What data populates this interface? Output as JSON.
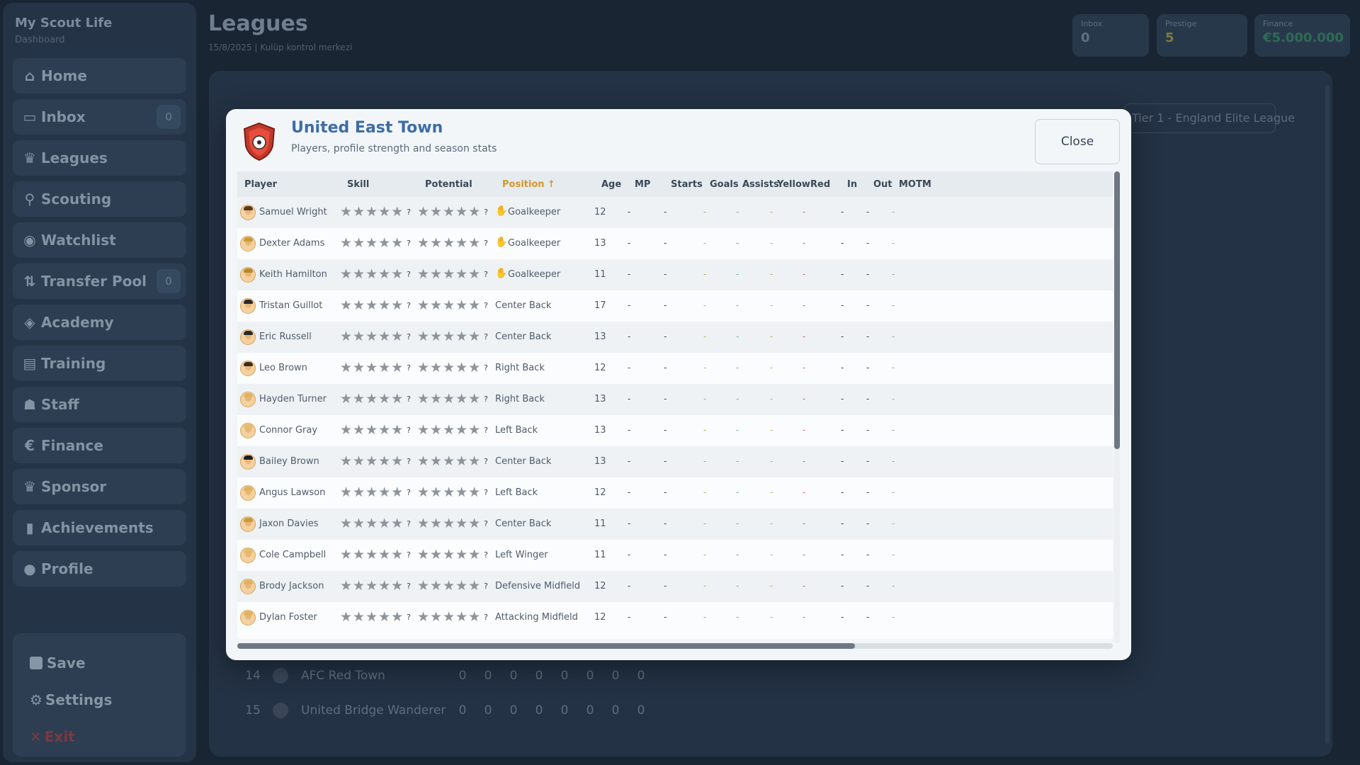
{
  "sidebar": {
    "brand": "My Scout Life",
    "brand_sub": "Dashboard",
    "items": [
      {
        "label": "Home",
        "icon": "home-icon",
        "count": ""
      },
      {
        "label": "Inbox",
        "icon": "inbox-icon",
        "count": "0"
      },
      {
        "label": "Leagues",
        "icon": "trophy-icon",
        "count": ""
      },
      {
        "label": "Scouting",
        "icon": "search-icon",
        "count": ""
      },
      {
        "label": "Watchlist",
        "icon": "eye-icon",
        "count": ""
      },
      {
        "label": "Transfer Pool",
        "icon": "transfer-icon",
        "count": "0"
      },
      {
        "label": "Academy",
        "icon": "academy-icon",
        "count": ""
      },
      {
        "label": "Training",
        "icon": "training-icon",
        "count": ""
      },
      {
        "label": "Staff",
        "icon": "staff-icon",
        "count": ""
      },
      {
        "label": "Finance",
        "icon": "finance-icon",
        "count": ""
      },
      {
        "label": "Sponsor",
        "icon": "sponsor-icon",
        "count": ""
      },
      {
        "label": "Achievements",
        "icon": "chart-icon",
        "count": ""
      },
      {
        "label": "Profile",
        "icon": "user-icon",
        "count": ""
      }
    ],
    "save": "Save",
    "settings": "Settings",
    "exit": "Exit"
  },
  "header": {
    "title": "Leagues",
    "subtitle": "15/8/2025  |  Kulüp kontrol merkezi",
    "stats": [
      {
        "label": "Inbox",
        "value": "0"
      },
      {
        "label": "Prestige",
        "value": "5"
      },
      {
        "label": "Finance",
        "value": "€5.000.000"
      }
    ]
  },
  "league_select": "Tier 1 - England Elite League",
  "standings": [
    {
      "pos": "14",
      "name": "AFC Red Town",
      "vals": [
        "0",
        "0",
        "0",
        "0",
        "0",
        "0",
        "0",
        "0"
      ]
    },
    {
      "pos": "15",
      "name": "United Bridge Wanderer",
      "vals": [
        "0",
        "0",
        "0",
        "0",
        "0",
        "0",
        "0",
        "0"
      ]
    }
  ],
  "modal": {
    "title": "United East Town",
    "subtitle": "Players, profile strength and season stats",
    "close": "Close",
    "columns": [
      "Player",
      "Skill",
      "Potential",
      "Position ↑",
      "Age",
      "MP",
      "Starts",
      "Goals",
      "Assists",
      "Yellow",
      "Red",
      "In",
      "Out",
      "MOTM"
    ],
    "unknown_mark": "?",
    "dash": "-",
    "players": [
      {
        "name": "Samuel Wright",
        "position": "Goalkeeper",
        "gk": true,
        "age": "12",
        "hair": "#5a3a1e"
      },
      {
        "name": "Dexter Adams",
        "position": "Goalkeeper",
        "gk": true,
        "age": "13",
        "hair": "#c79a3a"
      },
      {
        "name": "Keith Hamilton",
        "position": "Goalkeeper",
        "gk": true,
        "age": "11",
        "hair": "#b58a2e"
      },
      {
        "name": "Tristan Guillot",
        "position": "Center Back",
        "gk": false,
        "age": "17",
        "hair": "#2a2a2a"
      },
      {
        "name": "Eric Russell",
        "position": "Center Back",
        "gk": false,
        "age": "13",
        "hair": "#2a2a2a"
      },
      {
        "name": "Leo Brown",
        "position": "Right Back",
        "gk": false,
        "age": "12",
        "hair": "#3b2a1a"
      },
      {
        "name": "Hayden Turner",
        "position": "Right Back",
        "gk": false,
        "age": "13",
        "hair": "#e0b35a"
      },
      {
        "name": "Connor Gray",
        "position": "Left Back",
        "gk": false,
        "age": "13",
        "hair": "#e3bd6a"
      },
      {
        "name": "Bailey Brown",
        "position": "Center Back",
        "gk": false,
        "age": "13",
        "hair": "#1e1e1e"
      },
      {
        "name": "Angus Lawson",
        "position": "Left Back",
        "gk": false,
        "age": "12",
        "hair": "#e0b35a"
      },
      {
        "name": "Jaxon Davies",
        "position": "Center Back",
        "gk": false,
        "age": "11",
        "hair": "#c79a3a"
      },
      {
        "name": "Cole Campbell",
        "position": "Left Winger",
        "gk": false,
        "age": "11",
        "hair": "#e3bd6a"
      },
      {
        "name": "Brody Jackson",
        "position": "Defensive Midfield",
        "gk": false,
        "age": "12",
        "hair": "#e0b35a"
      },
      {
        "name": "Dylan Foster",
        "position": "Attacking Midfield",
        "gk": false,
        "age": "12",
        "hair": "#e0b35a"
      }
    ]
  }
}
